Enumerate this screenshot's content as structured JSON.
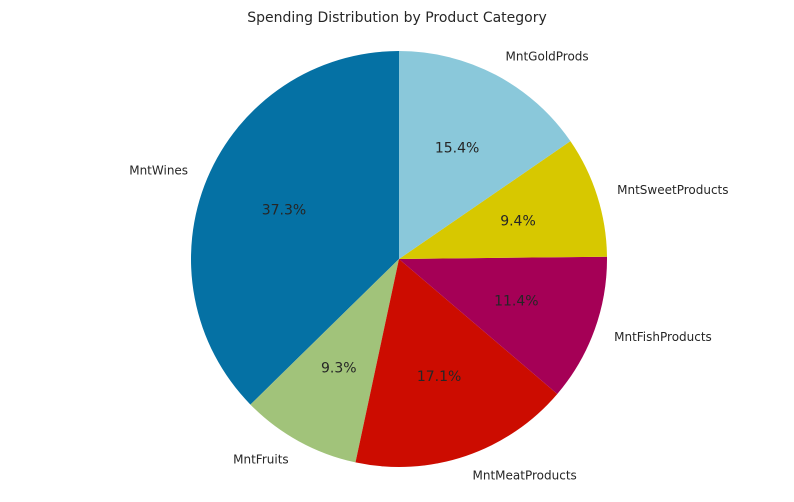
{
  "chart_data": {
    "type": "pie",
    "title": "Spending Distribution by Product Category",
    "start_angle_deg": 90,
    "direction": "counterclockwise",
    "slices": [
      {
        "label": "MntWines",
        "value": 37.3,
        "pct_label": "37.3%",
        "color": "#0571a4"
      },
      {
        "label": "MntFruits",
        "value": 9.3,
        "pct_label": "9.3%",
        "color": "#a1c37a"
      },
      {
        "label": "MntMeatProducts",
        "value": 17.1,
        "pct_label": "17.1%",
        "color": "#cc0c00"
      },
      {
        "label": "MntFishProducts",
        "value": 11.4,
        "pct_label": "11.4%",
        "color": "#a50056"
      },
      {
        "label": "MntSweetProducts",
        "value": 9.4,
        "pct_label": "9.4%",
        "color": "#d7c800"
      },
      {
        "label": "MntGoldProds",
        "value": 15.4,
        "pct_label": "15.4%",
        "color": "#8ac8da"
      }
    ]
  }
}
